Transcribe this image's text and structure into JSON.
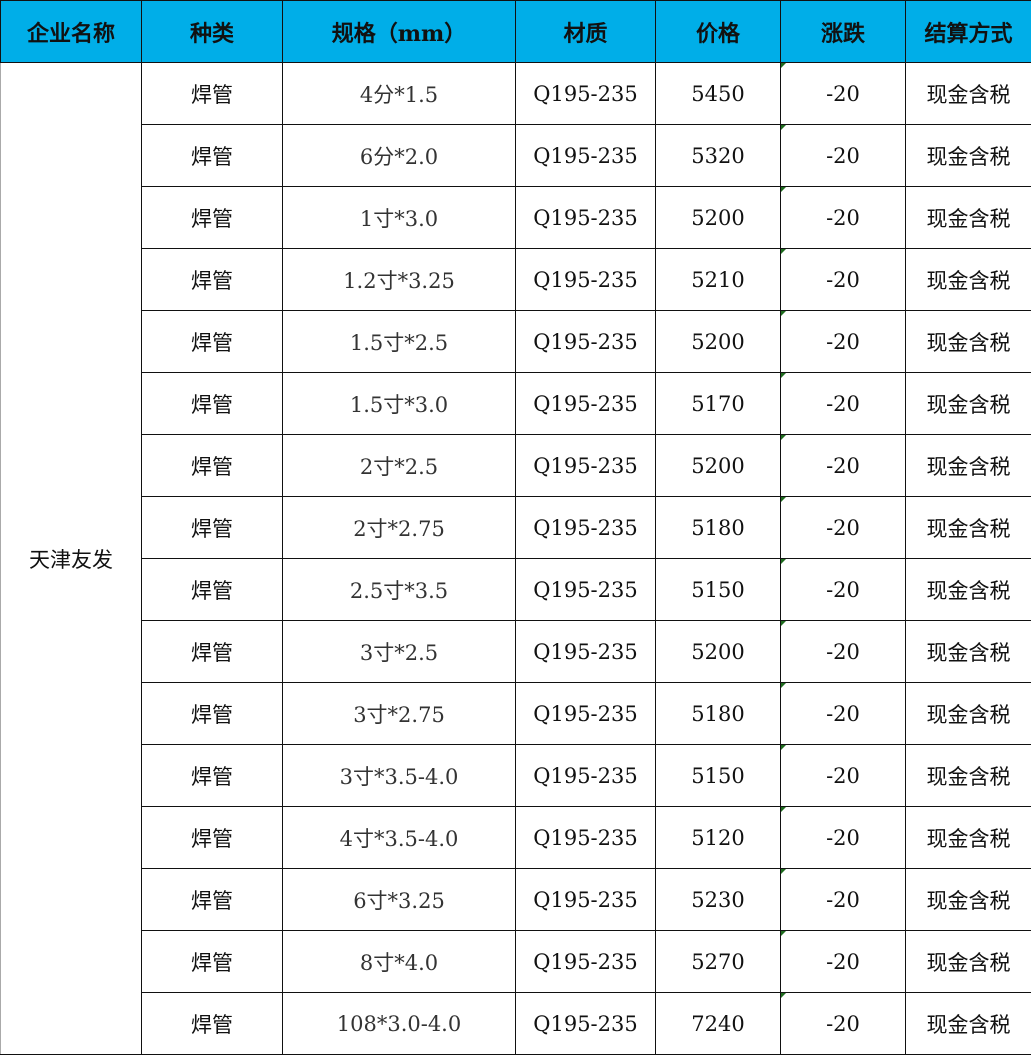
{
  "headers": [
    "企业名称",
    "种类",
    "规格（mm）",
    "材质",
    "价格",
    "涨跌",
    "结算方式"
  ],
  "company": "天津友发",
  "colors": {
    "header_bg": "#00aee8",
    "comment_marker": "#1e6b1e"
  },
  "rows": [
    {
      "type": "焊管",
      "spec": "4分*1.5",
      "material": "Q195-235",
      "price": "5450",
      "change": "-20",
      "settlement": "现金含税"
    },
    {
      "type": "焊管",
      "spec": "6分*2.0",
      "material": "Q195-235",
      "price": "5320",
      "change": "-20",
      "settlement": "现金含税"
    },
    {
      "type": "焊管",
      "spec": "1寸*3.0",
      "material": "Q195-235",
      "price": "5200",
      "change": "-20",
      "settlement": "现金含税"
    },
    {
      "type": "焊管",
      "spec": "1.2寸*3.25",
      "material": "Q195-235",
      "price": "5210",
      "change": "-20",
      "settlement": "现金含税"
    },
    {
      "type": "焊管",
      "spec": "1.5寸*2.5",
      "material": "Q195-235",
      "price": "5200",
      "change": "-20",
      "settlement": "现金含税"
    },
    {
      "type": "焊管",
      "spec": "1.5寸*3.0",
      "material": "Q195-235",
      "price": "5170",
      "change": "-20",
      "settlement": "现金含税"
    },
    {
      "type": "焊管",
      "spec": "2寸*2.5",
      "material": "Q195-235",
      "price": "5200",
      "change": "-20",
      "settlement": "现金含税"
    },
    {
      "type": "焊管",
      "spec": "2寸*2.75",
      "material": "Q195-235",
      "price": "5180",
      "change": "-20",
      "settlement": "现金含税"
    },
    {
      "type": "焊管",
      "spec": "2.5寸*3.5",
      "material": "Q195-235",
      "price": "5150",
      "change": "-20",
      "settlement": "现金含税"
    },
    {
      "type": "焊管",
      "spec": "3寸*2.5",
      "material": "Q195-235",
      "price": "5200",
      "change": "-20",
      "settlement": "现金含税"
    },
    {
      "type": "焊管",
      "spec": "3寸*2.75",
      "material": "Q195-235",
      "price": "5180",
      "change": "-20",
      "settlement": "现金含税"
    },
    {
      "type": "焊管",
      "spec": "3寸*3.5-4.0",
      "material": "Q195-235",
      "price": "5150",
      "change": "-20",
      "settlement": "现金含税"
    },
    {
      "type": "焊管",
      "spec": "4寸*3.5-4.0",
      "material": "Q195-235",
      "price": "5120",
      "change": "-20",
      "settlement": "现金含税"
    },
    {
      "type": "焊管",
      "spec": "6寸*3.25",
      "material": "Q195-235",
      "price": "5230",
      "change": "-20",
      "settlement": "现金含税"
    },
    {
      "type": "焊管",
      "spec": "8寸*4.0",
      "material": "Q195-235",
      "price": "5270",
      "change": "-20",
      "settlement": "现金含税"
    },
    {
      "type": "焊管",
      "spec": "108*3.0-4.0",
      "material": "Q195-235",
      "price": "7240",
      "change": "-20",
      "settlement": "现金含税"
    }
  ]
}
